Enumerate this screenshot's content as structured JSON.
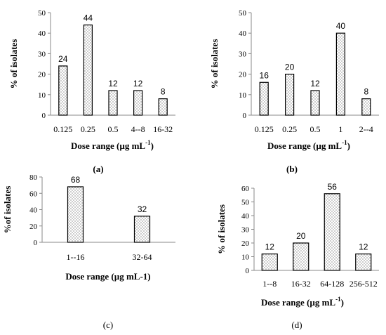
{
  "chart_data": [
    {
      "type": "bar",
      "panel": "(a)",
      "categories": [
        "0.125",
        "0.25",
        "0.5",
        "4--8",
        "16-32"
      ],
      "values": [
        24,
        44,
        12,
        12,
        8
      ],
      "ylabel": "% of isolates",
      "xlabel": "Dose range (µg mL",
      "xlabel_sup": "-1",
      "xlabel_end": ")",
      "ylim": [
        0,
        50
      ],
      "yticks": [
        0,
        10,
        20,
        30,
        40,
        50
      ],
      "bar_fill": "dotted"
    },
    {
      "type": "bar",
      "panel": "(b)",
      "categories": [
        "0.125",
        "0.25",
        "0.5",
        "1",
        "2--4"
      ],
      "values": [
        16,
        20,
        12,
        40,
        8
      ],
      "ylabel": "% of isolates",
      "xlabel": "Dose range (µg mL",
      "xlabel_sup": "-1",
      "xlabel_end": ")",
      "ylim": [
        0,
        50
      ],
      "yticks": [
        0,
        10,
        20,
        30,
        40,
        50
      ],
      "bar_fill": "dotted"
    },
    {
      "type": "bar",
      "panel": "(c)",
      "categories": [
        "1--16",
        "32-64"
      ],
      "values": [
        68,
        32
      ],
      "ylabel": "%of isolates",
      "xlabel": "Dose range (µg mL-1)",
      "xlabel_sup": "",
      "xlabel_end": "",
      "ylim": [
        0,
        80
      ],
      "yticks": [
        0,
        20,
        40,
        60,
        80
      ],
      "bar_fill": "dotted"
    },
    {
      "type": "bar",
      "panel": "(d)",
      "categories": [
        "1--8",
        "16-32",
        "64-128",
        "256-512"
      ],
      "values": [
        12,
        20,
        56,
        12
      ],
      "ylabel": "% of isolates",
      "xlabel": "Dose range (µg mL",
      "xlabel_sup": "-1",
      "xlabel_end": ")",
      "ylim": [
        0,
        60
      ],
      "yticks": [
        0,
        10,
        20,
        30,
        40,
        50,
        60
      ],
      "bar_fill": "dotted"
    }
  ],
  "colors": {
    "axis": "#888888",
    "bar_stroke": "#000000",
    "dots": "#555555"
  }
}
